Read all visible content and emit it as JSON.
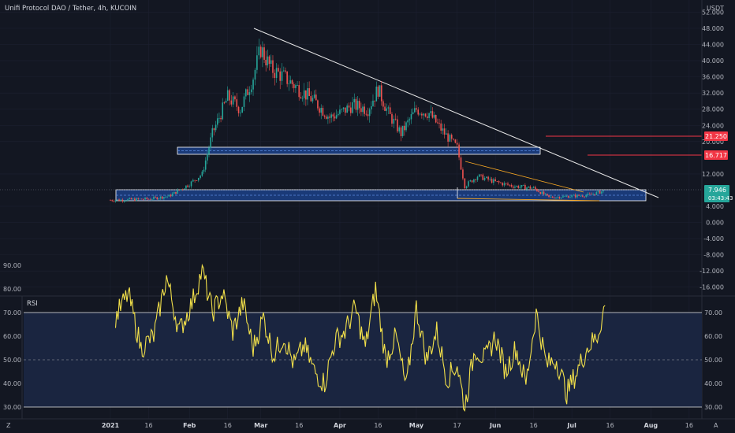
{
  "header": {
    "title": "Unifi Protocol DAO / Tether, 4h, KUCOIN",
    "currency": "USDT"
  },
  "colors": {
    "background": "#131722",
    "candle_up": "#26a69a",
    "candle_down": "#ef5350",
    "trendline": "#e8e8e8",
    "zone_fill": "#1a3a78",
    "zone_border": "#ffffff",
    "wedge_line": "#f5a623",
    "resistance_line": "#f23645",
    "rsi_line": "#f2e04a",
    "rsi_band": "#1a2540"
  },
  "price_badges": [
    {
      "label": "21.250",
      "color": "#f23645"
    },
    {
      "label": "16.717",
      "color": "#f23645"
    },
    {
      "label": "7.946",
      "sub": "03:43:43",
      "color": "#26a69a"
    }
  ],
  "rsi_panel": {
    "label": "RSI",
    "left_ticks": [
      "90.00",
      "80.00",
      "70.00",
      "60.00",
      "50.00",
      "40.00",
      "30.00"
    ],
    "right_ticks": [
      "70.00",
      "60.00",
      "50.00",
      "40.00",
      "30.00"
    ]
  },
  "footer": {
    "left_letter": "Z",
    "right_letter": "A"
  },
  "chart_data": [
    {
      "type": "line",
      "title": "Unifi Protocol DAO / Tether, 4h, KUCOIN",
      "ylabel": "USDT",
      "x_ticks": [
        "2021",
        "16",
        "Feb",
        "16",
        "Mar",
        "16",
        "Apr",
        "16",
        "May",
        "17",
        "Jun",
        "16",
        "Jul",
        "16",
        "Aug",
        "16"
      ],
      "y_ticks": [
        "52.000",
        "48.000",
        "44.000",
        "40.000",
        "36.000",
        "32.000",
        "28.000",
        "24.000",
        "20.000",
        "12.000",
        "4.000",
        "0.000",
        "-4.000",
        "-8.000",
        "-12.000",
        "-16.000"
      ],
      "ylim": [
        -16,
        52
      ],
      "series": [
        {
          "x": [
            "2021-01-01",
            "2021-01-16",
            "2021-01-24",
            "2021-02-01",
            "2021-02-06",
            "2021-02-10",
            "2021-02-16",
            "2021-02-21",
            "2021-02-26",
            "2021-03-01",
            "2021-03-05",
            "2021-03-10",
            "2021-03-16",
            "2021-03-22",
            "2021-03-28",
            "2021-04-01",
            "2021-04-06",
            "2021-04-12",
            "2021-04-16",
            "2021-04-20",
            "2021-04-25",
            "2021-05-01",
            "2021-05-06",
            "2021-05-12",
            "2021-05-17",
            "2021-05-20",
            "2021-05-25",
            "2021-06-01",
            "2021-06-08",
            "2021-06-16",
            "2021-06-22",
            "2021-07-01",
            "2021-07-08",
            "2021-07-14"
          ],
          "values": [
            5.5,
            5.8,
            6.5,
            9.5,
            12.0,
            22.0,
            31.0,
            28.0,
            36.0,
            43.0,
            38.0,
            36.0,
            33.0,
            30.0,
            26.0,
            27.0,
            29.0,
            28.0,
            33.0,
            27.0,
            22.0,
            28.0,
            27.0,
            22.0,
            18.5,
            9.0,
            11.5,
            10.0,
            9.0,
            8.5,
            6.2,
            6.5,
            6.8,
            7.9
          ]
        }
      ]
    },
    {
      "type": "line",
      "title": "RSI",
      "y_ticks": [
        "90.00",
        "80.00",
        "70.00",
        "60.00",
        "50.00",
        "40.00",
        "30.00"
      ],
      "ylim": [
        28,
        90
      ],
      "series": [
        {
          "x": [
            "2021-01-03",
            "2021-01-08",
            "2021-01-13",
            "2021-01-18",
            "2021-01-23",
            "2021-01-28",
            "2021-02-02",
            "2021-02-06",
            "2021-02-10",
            "2021-02-14",
            "2021-02-18",
            "2021-02-22",
            "2021-02-26",
            "2021-03-02",
            "2021-03-06",
            "2021-03-10",
            "2021-03-14",
            "2021-03-18",
            "2021-03-22",
            "2021-03-26",
            "2021-03-30",
            "2021-04-03",
            "2021-04-07",
            "2021-04-11",
            "2021-04-15",
            "2021-04-19",
            "2021-04-23",
            "2021-04-27",
            "2021-05-01",
            "2021-05-05",
            "2021-05-09",
            "2021-05-13",
            "2021-05-17",
            "2021-05-20",
            "2021-05-24",
            "2021-05-28",
            "2021-06-01",
            "2021-06-05",
            "2021-06-09",
            "2021-06-13",
            "2021-06-17",
            "2021-06-21",
            "2021-06-25",
            "2021-06-29",
            "2021-07-03",
            "2021-07-07",
            "2021-07-11",
            "2021-07-14"
          ],
          "values": [
            68,
            78,
            55,
            60,
            85,
            62,
            74,
            88,
            70,
            78,
            62,
            74,
            55,
            68,
            52,
            60,
            48,
            56,
            45,
            40,
            58,
            62,
            72,
            55,
            80,
            50,
            60,
            38,
            72,
            50,
            62,
            42,
            48,
            30,
            55,
            50,
            60,
            45,
            55,
            40,
            70,
            48,
            50,
            36,
            45,
            55,
            60,
            73
          ]
        }
      ]
    }
  ]
}
